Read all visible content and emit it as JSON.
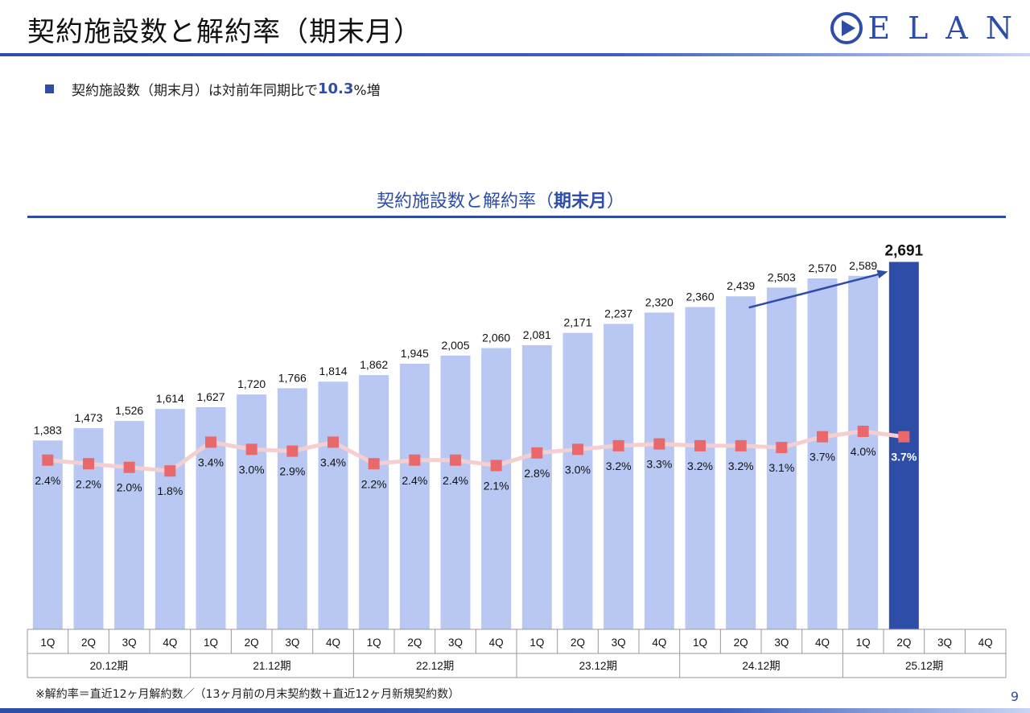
{
  "header": {
    "title": "契約施設数と解約率（期末月）",
    "logo_text": "ELAN"
  },
  "summary": {
    "prefix": "契約施設数（期末月）は対前年同期比で",
    "highlight_number": "10.3",
    "suffix": "%増"
  },
  "chart_title": {
    "main": "契約施設数と解約率（",
    "bold": "期末月",
    "close": "）"
  },
  "footnote": "※解約率＝直近12ヶ月解約数／（13ヶ月前の月末契約数＋直近12ヶ月新規契約数）",
  "page_number": "9",
  "colors": {
    "brand": "#2E4DA7",
    "bar": "#B8C8F2",
    "bar_highlight": "#2E4DA7",
    "rate_line": "#F5CFCF",
    "rate_marker": "#E8686C"
  },
  "chart_data": {
    "type": "bar",
    "title": "契約施設数と解約率（期末月）",
    "categories": [
      "1Q",
      "2Q",
      "3Q",
      "4Q",
      "1Q",
      "2Q",
      "3Q",
      "4Q",
      "1Q",
      "2Q",
      "3Q",
      "4Q",
      "1Q",
      "2Q",
      "3Q",
      "4Q",
      "1Q",
      "2Q",
      "3Q",
      "4Q",
      "1Q",
      "2Q",
      "3Q",
      "4Q"
    ],
    "groups": [
      {
        "label": "20.12期",
        "count": 4
      },
      {
        "label": "21.12期",
        "count": 4
      },
      {
        "label": "22.12期",
        "count": 4
      },
      {
        "label": "23.12期",
        "count": 4
      },
      {
        "label": "24.12期",
        "count": 4
      },
      {
        "label": "25.12期",
        "count": 4
      }
    ],
    "series": [
      {
        "values": [
          1383,
          1473,
          1526,
          1614,
          1627,
          1720,
          1766,
          1814,
          1862,
          1945,
          2005,
          2060,
          2081,
          2171,
          2237,
          2320,
          2360,
          2439,
          2503,
          2570,
          2589,
          2691,
          null,
          null
        ],
        "labels": [
          "1,383",
          "1,473",
          "1,526",
          "1,614",
          "1,627",
          "1,720",
          "1,766",
          "1,814",
          "1,862",
          "1,945",
          "2,005",
          "2,060",
          "2,081",
          "2,171",
          "2,237",
          "2,320",
          "2,360",
          "2,439",
          "2,503",
          "2,570",
          "2,589",
          "2,691",
          "",
          ""
        ]
      },
      {
        "values": [
          2.4,
          2.2,
          2.0,
          1.8,
          3.4,
          3.0,
          2.9,
          3.4,
          2.2,
          2.4,
          2.4,
          2.1,
          2.8,
          3.0,
          3.2,
          3.3,
          3.2,
          3.2,
          3.1,
          3.7,
          4.0,
          3.7,
          null,
          null
        ],
        "labels": [
          "2.4%",
          "2.2%",
          "2.0%",
          "1.8%",
          "3.4%",
          "3.0%",
          "2.9%",
          "3.4%",
          "2.2%",
          "2.4%",
          "2.4%",
          "2.1%",
          "2.8%",
          "3.0%",
          "3.2%",
          "3.3%",
          "3.2%",
          "3.2%",
          "3.1%",
          "3.7%",
          "4.0%",
          "3.7%",
          "",
          ""
        ]
      }
    ],
    "highlight_index": 21,
    "bar_ylim": [
      0,
      2900
    ],
    "rate_ylim": [
      -7,
      15
    ],
    "annotation": "trend arrow from 2Q 24.12期 to 2Q 25.12期",
    "legend": "none",
    "grid": false
  }
}
